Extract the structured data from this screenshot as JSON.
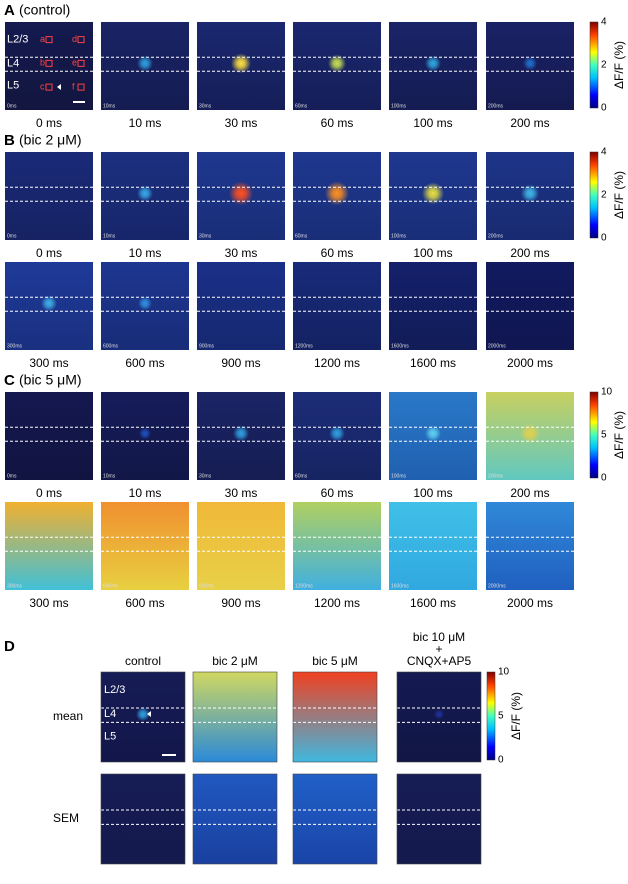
{
  "panels": [
    {
      "label": "A",
      "title": "(control)",
      "rows": [
        {
          "frames": [
            {
              "time": "0 ms",
              "stamp": "0ms"
            },
            {
              "time": "10 ms",
              "stamp": "10ms"
            },
            {
              "time": "30 ms",
              "stamp": "30ms"
            },
            {
              "time": "60 ms",
              "stamp": "60ms"
            },
            {
              "time": "100 ms",
              "stamp": "100ms"
            },
            {
              "time": "200 ms",
              "stamp": "200ms"
            }
          ]
        }
      ],
      "colorbar": {
        "ticks": [
          "4",
          "2",
          "0"
        ],
        "label": "ΔF/F (%)"
      },
      "layers": [
        "L2/3",
        "L4",
        "L5"
      ],
      "rois": [
        "a",
        "b",
        "c",
        "d",
        "e",
        "f"
      ]
    },
    {
      "label": "B",
      "title": "(bic 2 μM)",
      "rows": [
        {
          "frames": [
            {
              "time": "0 ms",
              "stamp": "0ms"
            },
            {
              "time": "10 ms",
              "stamp": "10ms"
            },
            {
              "time": "30 ms",
              "stamp": "30ms"
            },
            {
              "time": "60 ms",
              "stamp": "60ms"
            },
            {
              "time": "100 ms",
              "stamp": "100ms"
            },
            {
              "time": "200 ms",
              "stamp": "200ms"
            }
          ]
        },
        {
          "frames": [
            {
              "time": "300 ms",
              "stamp": "300ms"
            },
            {
              "time": "600 ms",
              "stamp": "600ms"
            },
            {
              "time": "900 ms",
              "stamp": "900ms"
            },
            {
              "time": "1200 ms",
              "stamp": "1200ms"
            },
            {
              "time": "1600 ms",
              "stamp": "1600ms"
            },
            {
              "time": "2000 ms",
              "stamp": "2000ms"
            }
          ]
        }
      ],
      "colorbar": {
        "ticks": [
          "4",
          "2",
          "0"
        ],
        "label": "ΔF/F (%)"
      }
    },
    {
      "label": "C",
      "title": "(bic 5 μM)",
      "rows": [
        {
          "frames": [
            {
              "time": "0 ms",
              "stamp": "0ms"
            },
            {
              "time": "10 ms",
              "stamp": "10ms"
            },
            {
              "time": "30 ms",
              "stamp": "30ms"
            },
            {
              "time": "60 ms",
              "stamp": "60ms"
            },
            {
              "time": "100 ms",
              "stamp": "100ms"
            },
            {
              "time": "200 ms",
              "stamp": "200ms"
            }
          ]
        },
        {
          "frames": [
            {
              "time": "300 ms",
              "stamp": "300ms"
            },
            {
              "time": "600 ms",
              "stamp": "600ms"
            },
            {
              "time": "900 ms",
              "stamp": "900ms"
            },
            {
              "time": "1200 ms",
              "stamp": "1200ms"
            },
            {
              "time": "1600 ms",
              "stamp": "1600ms"
            },
            {
              "time": "2000 ms",
              "stamp": "2000ms"
            }
          ]
        }
      ],
      "colorbar": {
        "ticks": [
          "10",
          "5",
          "0"
        ],
        "label": "ΔF/F (%)"
      }
    },
    {
      "label": "D",
      "columns": [
        [
          "control"
        ],
        [
          "bic 2 μM"
        ],
        [
          "bic 5 μM"
        ],
        [
          "bic 10 μM",
          "+",
          "CNQX+AP5"
        ]
      ],
      "rows": [
        "mean",
        "SEM"
      ],
      "colorbar": {
        "ticks": [
          "10",
          "5",
          "0"
        ],
        "label": "ΔF/F (%)"
      },
      "layers": [
        "L2/3",
        "L4",
        "L5"
      ]
    }
  ]
}
